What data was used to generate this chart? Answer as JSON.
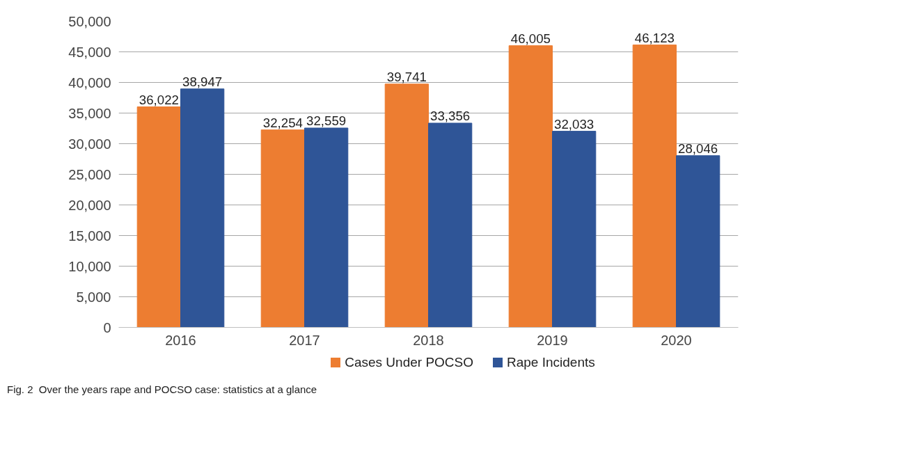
{
  "chart_data": {
    "type": "bar",
    "categories": [
      "2016",
      "2017",
      "2018",
      "2019",
      "2020"
    ],
    "series": [
      {
        "name": "Cases Under POCSO",
        "color": "#ed7d31",
        "values": [
          36022,
          32254,
          39741,
          46005,
          46123
        ],
        "value_labels": [
          "36,022",
          "32,254",
          "39,741",
          "46,005",
          "46,123"
        ]
      },
      {
        "name": "Rape Incidents",
        "color": "#2f5597",
        "values": [
          38947,
          32559,
          33356,
          32033,
          28046
        ],
        "value_labels": [
          "38,947",
          "32,559",
          "33,356",
          "32,033",
          "28,046"
        ]
      }
    ],
    "ylim": [
      0,
      50000
    ],
    "yticks": [
      0,
      {
        "value": 5000,
        "label": "5,000"
      },
      {
        "value": 10000,
        "label": "10,000"
      },
      {
        "value": 15000,
        "label": "15,000"
      },
      {
        "value": 20000,
        "label": "20,000"
      },
      {
        "value": 25000,
        "label": "25,000"
      },
      {
        "value": 30000,
        "label": "30,000"
      },
      {
        "value": 35000,
        "label": "35,000"
      },
      {
        "value": 40000,
        "label": "40,000"
      },
      {
        "value": 45000,
        "label": "45,000"
      },
      {
        "value": 50000,
        "label": "50,000"
      }
    ],
    "grid": "y",
    "legend": "bottom",
    "annotations": [
      "Fig. 2  Over the years rape and POCSO case: statistics at a glance"
    ]
  }
}
